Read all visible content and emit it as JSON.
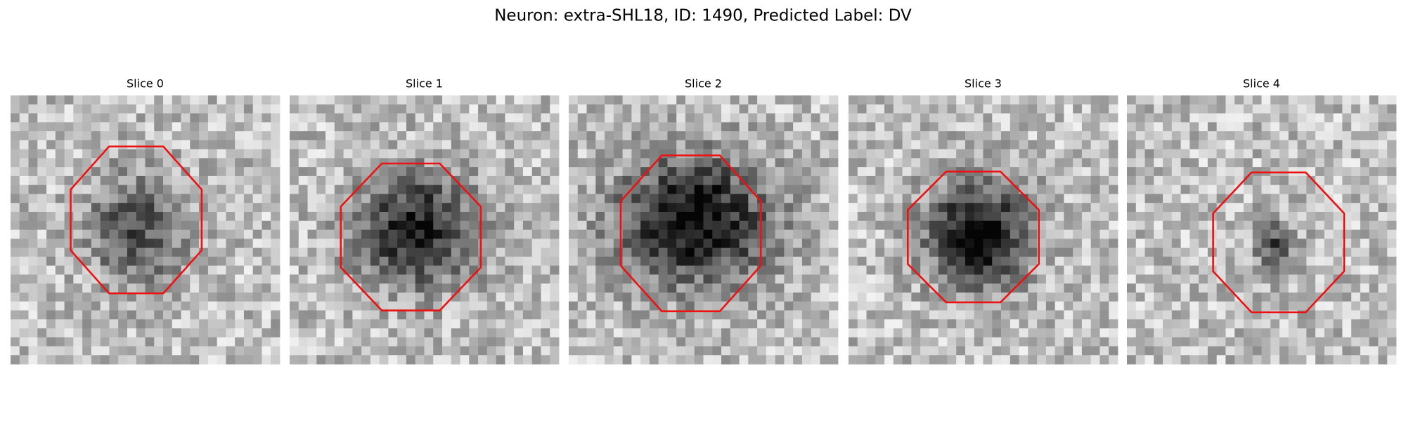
{
  "header": {
    "title": "Neuron: extra-SHL18, ID: 1490, Predicted Label: DV"
  },
  "panels": [
    {
      "title": "Slice 0"
    },
    {
      "title": "Slice 1"
    },
    {
      "title": "Slice 2"
    },
    {
      "title": "Slice 3"
    },
    {
      "title": "Slice 4"
    }
  ]
}
